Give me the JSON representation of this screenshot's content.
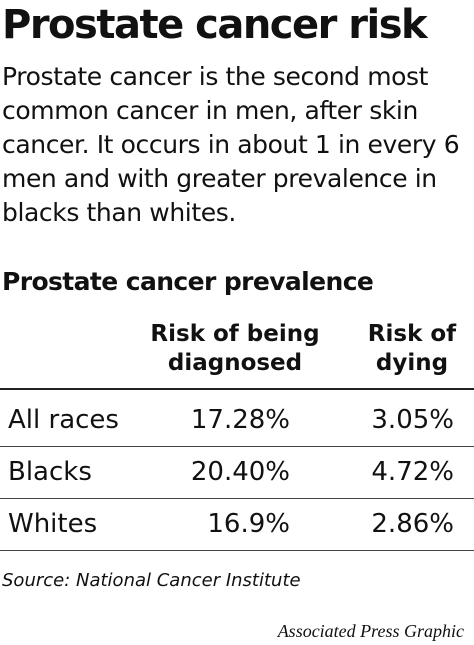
{
  "title": "Prostate cancer risk",
  "intro": "Prostate cancer is the second most common cancer in men, after skin cancer. It occurs in about 1 in every 6 men and with greater prevalence in blacks than whites.",
  "chart_data": {
    "type": "table",
    "title": "Prostate cancer prevalence",
    "columns": [
      "",
      "Risk of being\ndiagnosed",
      "Risk of\ndying"
    ],
    "rows": [
      {
        "label": "All races",
        "diagnosed": "17.28%",
        "dying": "3.05%"
      },
      {
        "label": "Blacks",
        "diagnosed": "20.40%",
        "dying": "4.72%"
      },
      {
        "label": "Whites",
        "diagnosed": "16.9%",
        "dying": "2.86%"
      }
    ]
  },
  "source": "Source: National Cancer Institute",
  "credit": "Associated Press Graphic"
}
